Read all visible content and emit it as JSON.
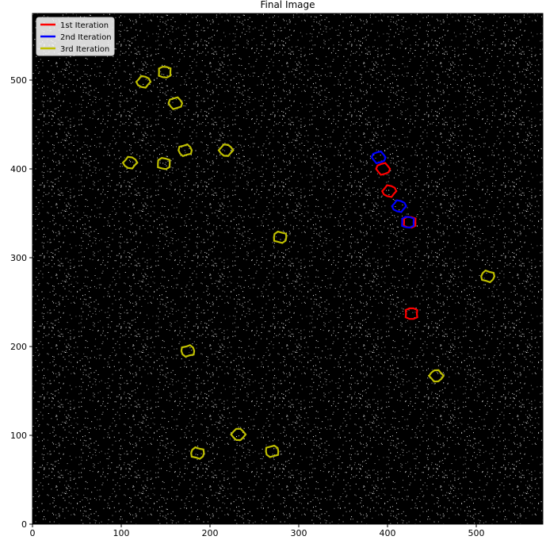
{
  "chart_data": {
    "type": "contour",
    "title": "Final Image",
    "xlim": [
      0,
      575
    ],
    "ylim": [
      0,
      575
    ],
    "xticks": [
      0,
      100,
      200,
      300,
      400,
      500
    ],
    "yticks": [
      0,
      100,
      200,
      300,
      400,
      500
    ],
    "legend": "upper left",
    "series": [
      {
        "name": "1st Iteration",
        "color": "#ff0000",
        "x": [
          427,
          395,
          402,
          425
        ],
        "y": [
          237,
          400,
          375,
          340
        ]
      },
      {
        "name": "2nd Iteration",
        "color": "#0000ff",
        "x": [
          390,
          413,
          423
        ],
        "y": [
          413,
          358,
          340
        ]
      },
      {
        "name": "3rd Iteration",
        "color": "#bfbf00",
        "x": [
          125,
          149,
          161,
          110,
          148,
          172,
          218,
          279,
          175,
          232,
          186,
          270,
          455,
          513
        ],
        "y": [
          498,
          509,
          474,
          407,
          406,
          421,
          421,
          323,
          195,
          101,
          80,
          82,
          167,
          279
        ]
      }
    ]
  }
}
